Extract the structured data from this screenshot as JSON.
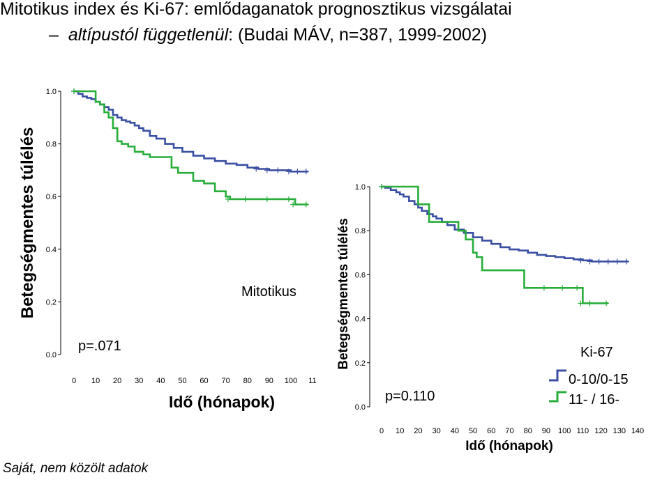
{
  "title": "Mitotikus index és Ki-67: emlődaganatok prognosztikus vizsgálatai",
  "subtitle": {
    "dash": "–",
    "emphasis": "altípustól függetlenül",
    "rest": ": (Budai MÁV, n=387, 1999-2002)"
  },
  "footnote": "Saját, nem közölt adatok",
  "colors": {
    "blue": "#3a4fa3",
    "green": "#27ad3a"
  },
  "chart_data": [
    {
      "type": "line",
      "xlabel": "Idő (hónapok)",
      "ylabel": "Betegségmentes túlélés",
      "xticks": [
        "0",
        "10",
        "20",
        "30",
        "40",
        "50",
        "60",
        "70",
        "80",
        "90",
        "100",
        "11"
      ],
      "yticks": [
        "0.0",
        "0.2",
        "0.4",
        "0.6",
        "0.8",
        "1.0"
      ],
      "xlim": [
        0,
        110
      ],
      "ylim": [
        0,
        1
      ],
      "annotations": {
        "group_label": "Mitotikus",
        "p_value": "p=.071"
      },
      "series": [
        {
          "color": "#3a4fa3",
          "x": [
            0,
            2,
            4,
            6,
            8,
            10,
            12,
            14,
            16,
            18,
            20,
            22,
            24,
            26,
            28,
            30,
            32,
            35,
            38,
            42,
            46,
            50,
            55,
            60,
            65,
            70,
            75,
            80,
            85,
            90,
            95,
            100,
            104,
            108
          ],
          "y": [
            1.0,
            0.99,
            0.98,
            0.975,
            0.97,
            0.96,
            0.95,
            0.94,
            0.93,
            0.91,
            0.9,
            0.89,
            0.885,
            0.88,
            0.87,
            0.86,
            0.85,
            0.83,
            0.82,
            0.8,
            0.785,
            0.77,
            0.755,
            0.745,
            0.735,
            0.725,
            0.72,
            0.71,
            0.705,
            0.7,
            0.7,
            0.695,
            0.695,
            0.695
          ]
        },
        {
          "color": "#27ad3a",
          "x": [
            0,
            4,
            8,
            10,
            12,
            14,
            16,
            18,
            20,
            22,
            25,
            28,
            32,
            35,
            38,
            45,
            48,
            50,
            55,
            60,
            65,
            70,
            72,
            80,
            90,
            100,
            102,
            108
          ],
          "y": [
            1.0,
            1.0,
            1.0,
            0.96,
            0.95,
            0.92,
            0.9,
            0.86,
            0.81,
            0.8,
            0.79,
            0.77,
            0.76,
            0.75,
            0.75,
            0.71,
            0.69,
            0.69,
            0.66,
            0.65,
            0.62,
            0.6,
            0.59,
            0.59,
            0.59,
            0.59,
            0.57,
            0.57
          ]
        }
      ]
    },
    {
      "type": "line",
      "xlabel": "Idő (hónapok)",
      "ylabel": "Betegségmentes túlélés",
      "xticks": [
        "0",
        "10",
        "20",
        "30",
        "40",
        "50",
        "60",
        "70",
        "80",
        "90",
        "100",
        "110",
        "120",
        "130",
        "140"
      ],
      "yticks": [
        "0.0",
        "0.2",
        "0.4",
        "0.6",
        "0.8",
        "1.0"
      ],
      "xlim": [
        0,
        140
      ],
      "ylim": [
        0,
        1
      ],
      "legend": {
        "title": "Ki-67",
        "position": "bottom-right"
      },
      "annotations": {
        "p_value": "p=0.110"
      },
      "series": [
        {
          "name": "0-10/0-15",
          "color": "#3a4fa3",
          "x": [
            0,
            2,
            5,
            8,
            10,
            12,
            15,
            18,
            20,
            22,
            25,
            28,
            30,
            33,
            36,
            40,
            45,
            50,
            55,
            60,
            65,
            70,
            75,
            80,
            85,
            90,
            95,
            100,
            105,
            110,
            115,
            120,
            125,
            130,
            135
          ],
          "y": [
            1.0,
            0.995,
            0.985,
            0.975,
            0.965,
            0.955,
            0.935,
            0.92,
            0.905,
            0.89,
            0.875,
            0.865,
            0.855,
            0.84,
            0.825,
            0.805,
            0.79,
            0.77,
            0.755,
            0.74,
            0.725,
            0.715,
            0.71,
            0.7,
            0.69,
            0.685,
            0.68,
            0.675,
            0.67,
            0.665,
            0.66,
            0.66,
            0.66,
            0.66,
            0.66
          ]
        },
        {
          "name": "11- / 16-",
          "color": "#27ad3a",
          "x": [
            0,
            10,
            18,
            20,
            25,
            26,
            40,
            42,
            46,
            50,
            52,
            55,
            60,
            65,
            70,
            78,
            80,
            90,
            100,
            108,
            110,
            115,
            124
          ],
          "y": [
            1.0,
            1.0,
            1.0,
            0.92,
            0.92,
            0.84,
            0.84,
            0.8,
            0.76,
            0.7,
            0.68,
            0.62,
            0.62,
            0.62,
            0.62,
            0.54,
            0.54,
            0.54,
            0.54,
            0.54,
            0.47,
            0.47,
            0.47
          ]
        }
      ]
    }
  ]
}
